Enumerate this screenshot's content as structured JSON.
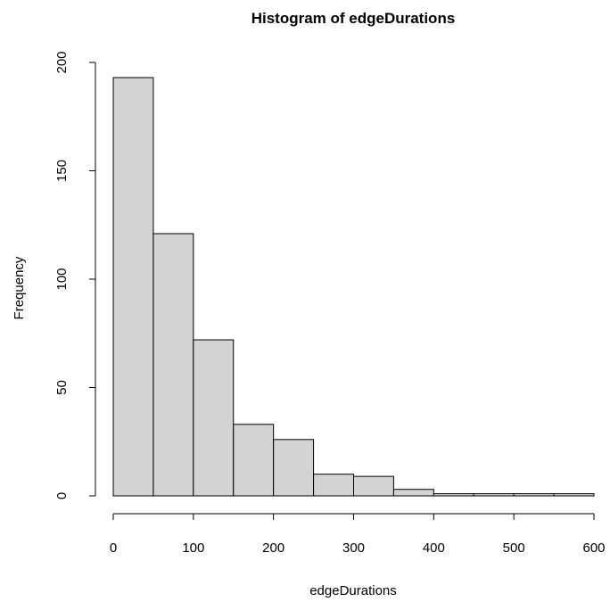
{
  "chart_data": {
    "type": "bar",
    "title": "Histogram of edgeDurations",
    "xlabel": "edgeDurations",
    "ylabel": "Frequency",
    "bins": [
      {
        "start": 0,
        "end": 50,
        "count": 193
      },
      {
        "start": 50,
        "end": 100,
        "count": 121
      },
      {
        "start": 100,
        "end": 150,
        "count": 72
      },
      {
        "start": 150,
        "end": 200,
        "count": 33
      },
      {
        "start": 200,
        "end": 250,
        "count": 26
      },
      {
        "start": 250,
        "end": 300,
        "count": 10
      },
      {
        "start": 300,
        "end": 350,
        "count": 9
      },
      {
        "start": 350,
        "end": 400,
        "count": 3
      },
      {
        "start": 400,
        "end": 450,
        "count": 1
      },
      {
        "start": 450,
        "end": 500,
        "count": 1
      },
      {
        "start": 500,
        "end": 550,
        "count": 1
      },
      {
        "start": 550,
        "end": 600,
        "count": 1
      }
    ],
    "xlim": [
      0,
      600
    ],
    "ylim": [
      0,
      200
    ],
    "x_ticks": [
      0,
      100,
      200,
      300,
      400,
      500,
      600
    ],
    "y_ticks": [
      0,
      50,
      100,
      150,
      200
    ],
    "x_tick_labels": [
      "0",
      "100",
      "200",
      "300",
      "400",
      "500",
      "600"
    ],
    "y_tick_labels": [
      "0",
      "50",
      "100",
      "150",
      "200"
    ],
    "grid": false,
    "legend": "none",
    "colors": {
      "bar_fill": "#d3d3d3",
      "bar_stroke": "#000000"
    }
  }
}
